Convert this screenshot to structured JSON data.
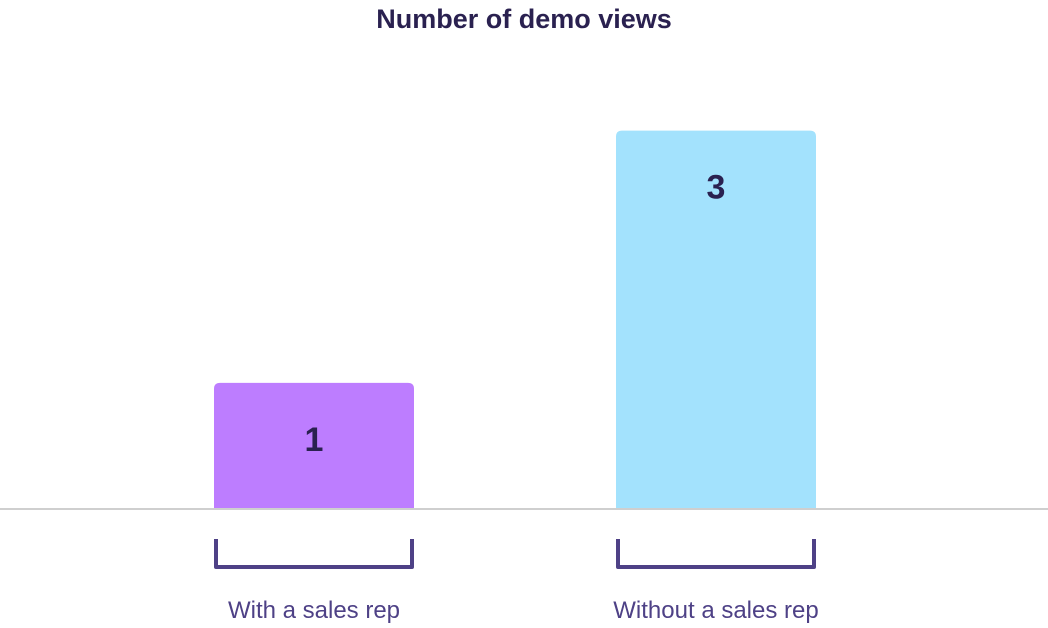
{
  "colors": {
    "title": "#2a2150",
    "value_label": "#2a2150",
    "category_label": "#4e4186",
    "bracket": "#4e4186",
    "baseline": "#cfcfcf"
  },
  "chart_data": {
    "type": "bar",
    "title": "Number of demo views",
    "xlabel": "",
    "ylabel": "",
    "categories": [
      "With a sales rep",
      "Without a sales rep"
    ],
    "values": [
      1,
      3
    ],
    "bar_colors": [
      "#bd7dff",
      "#a3e2fd"
    ],
    "ylim": [
      0,
      3.56
    ],
    "grid": false,
    "legend": "none",
    "data_labels": [
      "1",
      "3"
    ]
  }
}
